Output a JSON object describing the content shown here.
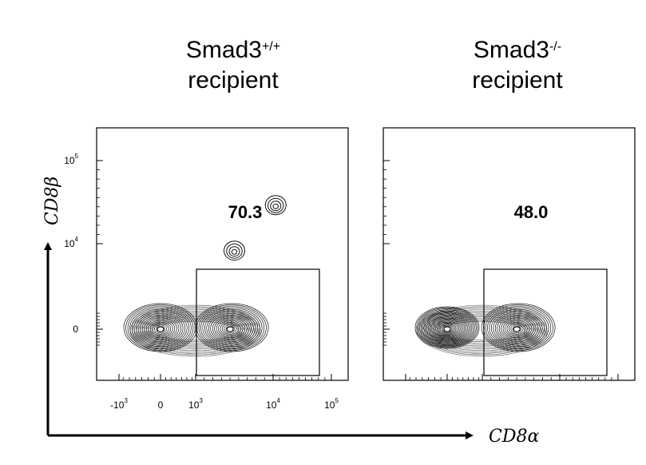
{
  "chart_data": [
    {
      "type": "contour",
      "title_main": "Smad3",
      "title_sup": "+/+",
      "title_line2": "recipient",
      "gate_value": "70.3",
      "gate": {
        "x": [
          1000,
          70000
        ],
        "y": [
          -2500,
          5000
        ]
      },
      "x_scale": "biexponential",
      "y_scale": "biexponential",
      "x_ticks": [
        {
          "base": "-10",
          "exp": "3",
          "value": -1000
        },
        {
          "base": "0",
          "exp": "",
          "value": 0
        },
        {
          "base": "10",
          "exp": "3",
          "value": 1000
        },
        {
          "base": "10",
          "exp": "4",
          "value": 10000
        },
        {
          "base": "10",
          "exp": "5",
          "value": 100000
        }
      ],
      "y_ticks": [
        {
          "base": "0",
          "exp": "",
          "value": 0
        },
        {
          "base": "10",
          "exp": "4",
          "value": 10000
        },
        {
          "base": "10",
          "exp": "5",
          "value": 100000
        }
      ],
      "populations": [
        {
          "x": 0,
          "y": 0,
          "density": "high"
        },
        {
          "x": 5000,
          "y": 0,
          "density": "high"
        },
        {
          "x": 14000,
          "y": 50000,
          "density": "low"
        },
        {
          "x": 5500,
          "y": 9000,
          "density": "low"
        }
      ]
    },
    {
      "type": "contour",
      "title_main": "Smad3",
      "title_sup": "-/-",
      "title_line2": "recipient",
      "gate_value": "48.0",
      "gate": {
        "x": [
          1000,
          70000
        ],
        "y": [
          -2500,
          5000
        ]
      },
      "x_scale": "biexponential",
      "y_scale": "biexponential",
      "populations": [
        {
          "x": 0,
          "y": 0,
          "density": "very high"
        },
        {
          "x": 5000,
          "y": 0,
          "density": "high"
        }
      ]
    }
  ],
  "axes": {
    "x_label_base": "CD8",
    "x_label_greek": "α",
    "y_label_base": "CD8",
    "y_label_greek": "β"
  }
}
